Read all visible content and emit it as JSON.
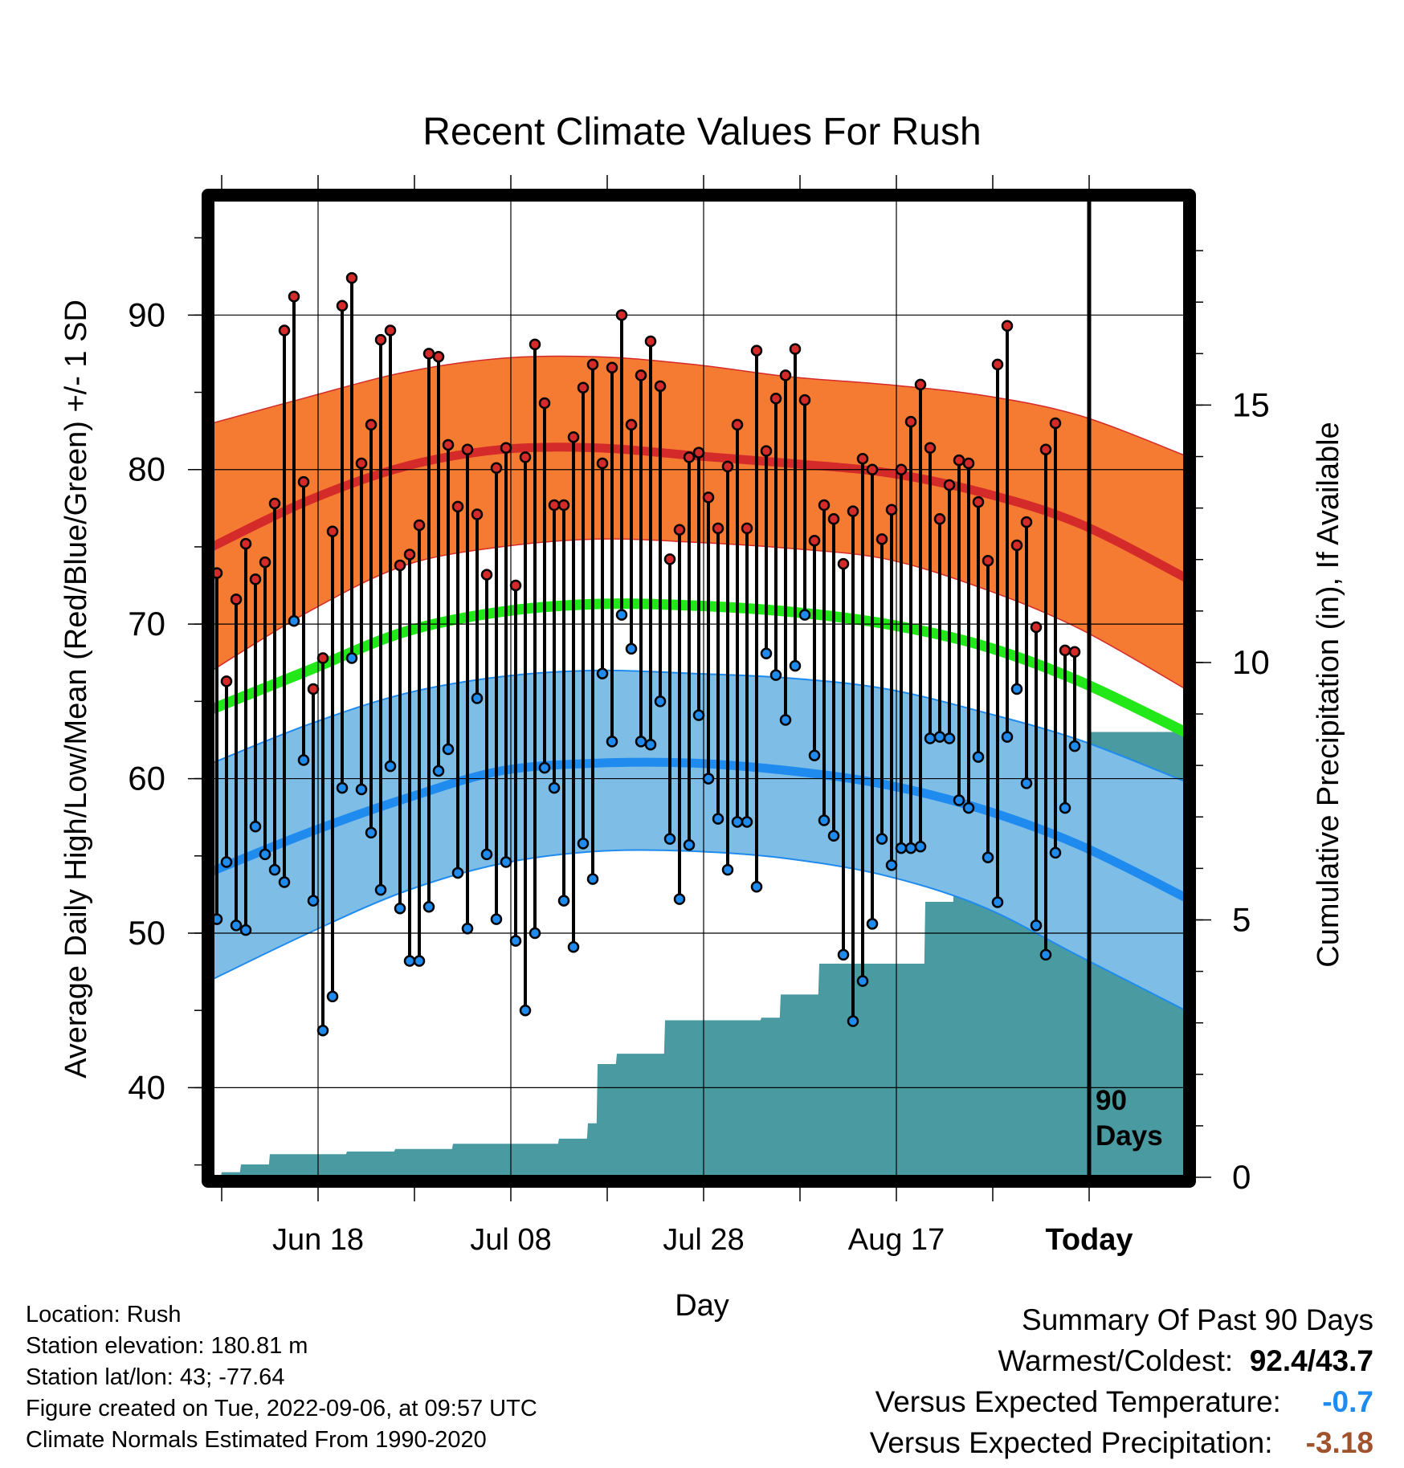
{
  "chart_data": {
    "type": "line",
    "title": "Recent Climate Values For Rush",
    "xlabel": "Day",
    "ylabel": "Average Daily High/Low/Mean (Red/Blue/Green) +/- 1 SD",
    "y2label": "Cumulative Precipitation (in), If Available",
    "ylim": [
      34.2,
      97.5
    ],
    "y2lim": [
      0,
      19
    ],
    "yticks": [
      "40",
      "50",
      "60",
      "70",
      "80",
      "90"
    ],
    "y2ticks": [
      "0",
      "5",
      "10",
      "15"
    ],
    "xticks": [
      "Jun 18",
      "Jul 08",
      "Jul 28",
      "Aug 17",
      "Today"
    ],
    "xtick_days": [
      11,
      31,
      51,
      71,
      91
    ],
    "xlim": [
      0,
      101
    ],
    "today_day": 91,
    "today_label": [
      "90",
      "Days"
    ],
    "colors": {
      "high_band": "#f47b31",
      "high_mean": "#d42a2a",
      "low_band": "#7dbde6",
      "low_mean": "#1f8bef",
      "mean": "#22e81a",
      "precip": "#4a9aa2",
      "high_point": "#d42a2a",
      "low_point": "#1f8bef"
    },
    "normals": {
      "days": [
        0,
        10,
        20,
        30,
        40,
        50,
        60,
        70,
        80,
        90,
        101
      ],
      "high_mean": [
        75.0,
        78.0,
        80.2,
        81.3,
        81.4,
        80.9,
        80.4,
        79.8,
        78.5,
        76.5,
        73.0
      ],
      "high_upper": [
        83.0,
        84.7,
        86.3,
        87.2,
        87.3,
        86.8,
        86.0,
        85.5,
        84.8,
        83.5,
        80.9
      ],
      "high_lower": [
        67.0,
        70.8,
        73.8,
        75.0,
        75.5,
        75.3,
        74.9,
        74.2,
        72.3,
        69.7,
        65.8
      ],
      "mean": [
        64.5,
        67.0,
        69.5,
        70.8,
        71.3,
        71.2,
        70.8,
        70.0,
        68.6,
        66.3,
        63.0
      ],
      "low_mean": [
        54.0,
        56.5,
        58.7,
        60.5,
        61.0,
        61.0,
        60.5,
        59.6,
        58.0,
        55.7,
        52.3
      ],
      "low_upper": [
        61.0,
        63.5,
        65.5,
        66.6,
        67.0,
        66.8,
        66.5,
        65.8,
        64.3,
        62.5,
        59.8
      ],
      "low_lower": [
        47.0,
        50.0,
        52.7,
        54.5,
        55.3,
        55.3,
        54.8,
        53.7,
        51.7,
        48.5,
        45.0
      ]
    },
    "series": [
      {
        "name": "High",
        "values": [
          73.3,
          66.3,
          71.6,
          75.2,
          72.9,
          74.0,
          77.8,
          89.0,
          91.2,
          79.2,
          65.8,
          67.8,
          76.0,
          90.6,
          92.4,
          80.4,
          82.9,
          88.4,
          89.0,
          73.8,
          74.5,
          76.4,
          87.5,
          87.3,
          81.6,
          77.6,
          81.3,
          77.1,
          73.2,
          80.1,
          81.4,
          72.5,
          80.8,
          88.1,
          84.3,
          77.7,
          77.7,
          82.1,
          85.3,
          86.8,
          80.4,
          86.6,
          90.0,
          82.9,
          86.1,
          88.3,
          85.4,
          74.2,
          76.1,
          80.8,
          81.1,
          78.2,
          76.2,
          80.2,
          82.9,
          76.2,
          87.7,
          81.2,
          84.6,
          86.1,
          87.8,
          84.5,
          75.4,
          77.7,
          76.8,
          73.9,
          77.3,
          80.7,
          80.0,
          75.5,
          77.4,
          80.0,
          83.1,
          85.5,
          81.4,
          76.8,
          79.0,
          80.6,
          80.4,
          77.9,
          74.1,
          86.8,
          89.3,
          75.1,
          76.6,
          69.8,
          81.3,
          83.0,
          68.3,
          68.2
        ]
      },
      {
        "name": "Low",
        "values": [
          50.9,
          54.6,
          50.5,
          50.2,
          56.9,
          55.1,
          54.1,
          53.3,
          70.2,
          61.2,
          52.1,
          43.7,
          45.9,
          59.4,
          67.8,
          59.3,
          56.5,
          52.8,
          60.8,
          51.6,
          48.2,
          48.2,
          51.7,
          60.5,
          61.9,
          53.9,
          50.3,
          65.2,
          55.1,
          50.9,
          54.6,
          49.5,
          45.0,
          50.0,
          60.7,
          59.4,
          52.1,
          49.1,
          55.8,
          53.5,
          66.8,
          62.4,
          70.6,
          68.4,
          62.4,
          62.2,
          65.0,
          56.1,
          52.2,
          55.7,
          64.1,
          60.0,
          57.4,
          54.1,
          57.2,
          57.2,
          53.0,
          68.1,
          66.7,
          63.8,
          67.3,
          70.6,
          61.5,
          57.3,
          56.3,
          48.6,
          44.3,
          46.9,
          50.6,
          56.1,
          54.4,
          55.5,
          55.5,
          55.6,
          62.6,
          62.7,
          62.6,
          58.6,
          58.1,
          61.4,
          54.9,
          52.0,
          62.7,
          65.8,
          59.7,
          50.5,
          48.6,
          55.2,
          58.1,
          62.1
        ]
      },
      {
        "name": "Cumulative Precipitation",
        "x": [
          0,
          0.9,
          1,
          2.9,
          3,
          5.9,
          6,
          13.9,
          14,
          18.9,
          19,
          24.9,
          25,
          35.9,
          36,
          38.9,
          39,
          39.9,
          40,
          41.9,
          42,
          44.9,
          45,
          46.9,
          47,
          56.9,
          57,
          58.9,
          59,
          62.9,
          63,
          68.9,
          69,
          73.9,
          74,
          75.9,
          76,
          76.9,
          77,
          79.9,
          80,
          82.9,
          83,
          85.9,
          86,
          88.9,
          89,
          90.9,
          91,
          101
        ],
        "values": [
          0,
          0,
          0.1,
          0.1,
          0.25,
          0.25,
          0.45,
          0.45,
          0.5,
          0.5,
          0.55,
          0.55,
          0.65,
          0.65,
          0.75,
          0.75,
          1.05,
          1.05,
          2.2,
          2.2,
          2.4,
          2.4,
          2.4,
          2.4,
          3.05,
          3.05,
          3.1,
          3.1,
          3.55,
          3.55,
          4.15,
          4.15,
          4.15,
          4.15,
          5.35,
          5.35,
          5.35,
          5.35,
          5.9,
          5.9,
          6.4,
          6.4,
          7.45,
          7.45,
          8.35,
          8.35,
          8.4,
          8.4,
          8.65,
          8.65
        ]
      }
    ]
  },
  "info": {
    "location": "Location: Rush",
    "elevation": "Station elevation: 180.81 m",
    "latlon": "Station lat/lon: 43; -77.64",
    "created": "Figure created on Tue, 2022-09-06, at 09:57 UTC",
    "normals": "Climate Normals Estimated From 1990-2020"
  },
  "summary": {
    "heading": "Summary Of Past 90 Days",
    "warmest_label": "Warmest/Coldest:",
    "warmest_value": "92.4/43.7",
    "temp_label": "Versus Expected Temperature:",
    "temp_value": "-0.7",
    "temp_color": "#1f8bef",
    "precip_label": "Versus Expected Precipitation:",
    "precip_value": "-3.18",
    "precip_color": "#a0522d"
  }
}
